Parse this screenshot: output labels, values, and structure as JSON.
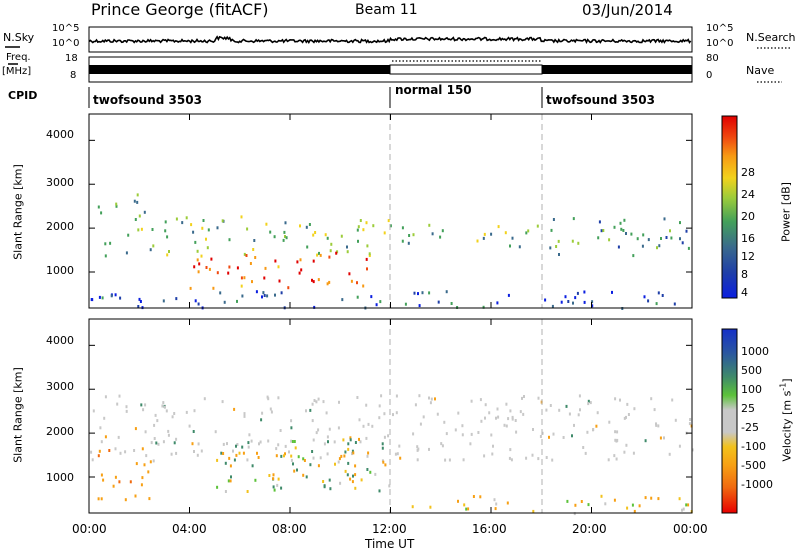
{
  "header": {
    "station": "Prince George (fitACF)",
    "beam": "Beam 11",
    "date": "03/Jun/2014"
  },
  "noise_panel": {
    "left_label": "N.Sky",
    "left_ticks": [
      "10^5",
      "10^0"
    ],
    "right_ticks": [
      "10^5",
      "10^0"
    ],
    "right_label": "N.Search"
  },
  "freq_panel": {
    "left_label_top": "Freq.",
    "left_label_bottom": "[MHz]",
    "left_ticks": [
      "18",
      "8"
    ],
    "right_ticks": [
      "80",
      "0"
    ],
    "right_label": "Nave"
  },
  "cpid": {
    "label": "CPID",
    "segments": [
      {
        "name": "twofsound 3503"
      },
      {
        "name": "normal 150"
      },
      {
        "name": "twofsound 3503"
      }
    ]
  },
  "x_axis": {
    "label": "Time UT",
    "ticks": [
      "00:00",
      "04:00",
      "08:00",
      "12:00",
      "16:00",
      "20:00",
      "00:00"
    ]
  },
  "power_panel": {
    "ylabel": "Slant Range [km]",
    "yticks": [
      "4000",
      "3000",
      "2000",
      "1000"
    ],
    "colorbar_label": "Power [dB]",
    "colorbar_ticks": [
      "28",
      "24",
      "20",
      "16",
      "12",
      "8",
      "4"
    ]
  },
  "velocity_panel": {
    "ylabel": "Slant Range [km]",
    "yticks": [
      "4000",
      "3000",
      "2000",
      "1000"
    ],
    "colorbar_label": "Velocity [m s",
    "colorbar_label_sup": "-1",
    "colorbar_label_end": "]",
    "colorbar_ticks": [
      "1000",
      "500",
      "100",
      "25",
      "-25",
      "-100",
      "-500",
      "-1000"
    ]
  },
  "chart_data": [
    {
      "type": "heatmap",
      "title": "Power",
      "xlabel": "Time UT",
      "ylabel": "Slant Range [km]",
      "xlim": [
        0,
        24
      ],
      "ylim": [
        180,
        4600
      ],
      "colorbar": {
        "label": "Power [dB]",
        "range": [
          0,
          32
        ],
        "ticks": [
          4,
          8,
          12,
          16,
          20,
          24,
          28
        ]
      },
      "scatter_bands": [
        {
          "t_start": 0.3,
          "t_end": 2.3,
          "r_min": 2300,
          "r_max": 2900,
          "power_db": 16
        },
        {
          "t_start": 0.5,
          "t_end": 12.0,
          "r_min": 1400,
          "r_max": 2300,
          "power_db": 14
        },
        {
          "t_start": 4.0,
          "t_end": 11.5,
          "r_min": 650,
          "r_max": 1500,
          "power_db": 27
        },
        {
          "t_start": 12.0,
          "t_end": 18.0,
          "r_min": 1600,
          "r_max": 2100,
          "power_db": 14
        },
        {
          "t_start": 18.0,
          "t_end": 24.0,
          "r_min": 1400,
          "r_max": 2300,
          "power_db": 12
        },
        {
          "t_start": 0.0,
          "t_end": 24.0,
          "r_min": 200,
          "r_max": 600,
          "power_db": 6
        }
      ]
    },
    {
      "type": "heatmap",
      "title": "Velocity",
      "xlabel": "Time UT",
      "ylabel": "Slant Range [km]",
      "xlim": [
        0,
        24
      ],
      "ylim": [
        180,
        4600
      ],
      "colorbar": {
        "label": "Velocity [m s-1]",
        "range": [
          -1200,
          1200
        ],
        "ticks": [
          1000,
          500,
          100,
          25,
          -25,
          -100,
          -500,
          -1000
        ]
      },
      "scatter_bands": [
        {
          "t_start": 0.0,
          "t_end": 2.5,
          "r_min": 500,
          "r_max": 1700,
          "velocity": -400
        },
        {
          "t_start": 0.0,
          "t_end": 24.0,
          "r_min": 1400,
          "r_max": 2900,
          "velocity": 0
        },
        {
          "t_start": 5.0,
          "t_end": 12.0,
          "r_min": 700,
          "r_max": 1900,
          "velocity": 100
        },
        {
          "t_start": 5.0,
          "t_end": 12.0,
          "r_min": 900,
          "r_max": 1600,
          "velocity": -200
        },
        {
          "t_start": 12.0,
          "t_end": 24.0,
          "r_min": 200,
          "r_max": 600,
          "velocity": -100
        }
      ]
    }
  ]
}
